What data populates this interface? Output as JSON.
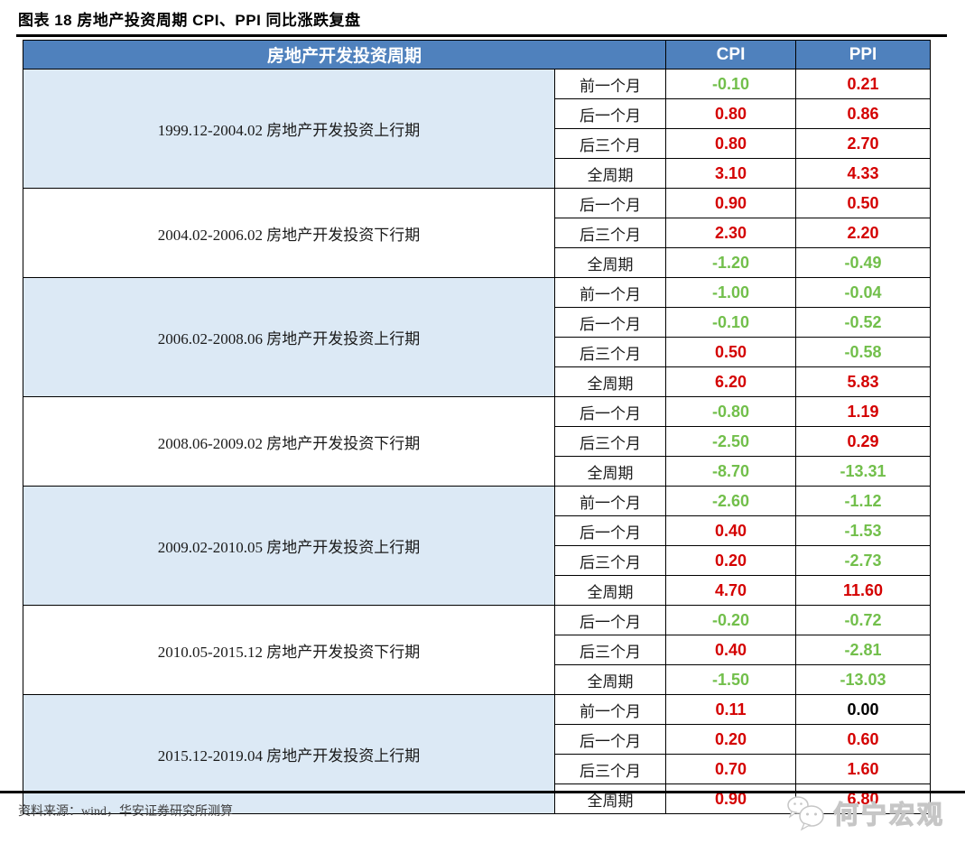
{
  "title": "图表 18 房地产投资周期 CPI、PPI 同比涨跌复盘",
  "colors": {
    "header_bg": "#4F81BD",
    "band_bg": "#DCE9F5",
    "positive_red": "#D40000",
    "negative_green": "#72BF4B",
    "zero_black": "#000000"
  },
  "table": {
    "header": {
      "period": "房地产开发投资周期",
      "cpi": "CPI",
      "ppi": "PPI"
    },
    "groups": [
      {
        "period": "1999.12-2004.02 房地产开发投资上行期",
        "shaded": true,
        "rows": [
          {
            "label": "前一个月",
            "cpi": "-0.10",
            "ppi": "0.21"
          },
          {
            "label": "后一个月",
            "cpi": "0.80",
            "ppi": "0.86"
          },
          {
            "label": "后三个月",
            "cpi": "0.80",
            "ppi": "2.70"
          },
          {
            "label": "全周期",
            "cpi": "3.10",
            "ppi": "4.33"
          }
        ]
      },
      {
        "period": "2004.02-2006.02 房地产开发投资下行期",
        "shaded": false,
        "rows": [
          {
            "label": "后一个月",
            "cpi": "0.90",
            "ppi": "0.50"
          },
          {
            "label": "后三个月",
            "cpi": "2.30",
            "ppi": "2.20"
          },
          {
            "label": "全周期",
            "cpi": "-1.20",
            "ppi": "-0.49"
          }
        ]
      },
      {
        "period": "2006.02-2008.06 房地产开发投资上行期",
        "shaded": true,
        "rows": [
          {
            "label": "前一个月",
            "cpi": "-1.00",
            "ppi": "-0.04"
          },
          {
            "label": "后一个月",
            "cpi": "-0.10",
            "ppi": "-0.52"
          },
          {
            "label": "后三个月",
            "cpi": "0.50",
            "ppi": "-0.58"
          },
          {
            "label": "全周期",
            "cpi": "6.20",
            "ppi": "5.83"
          }
        ]
      },
      {
        "period": "2008.06-2009.02 房地产开发投资下行期",
        "shaded": false,
        "rows": [
          {
            "label": "后一个月",
            "cpi": "-0.80",
            "ppi": "1.19"
          },
          {
            "label": "后三个月",
            "cpi": "-2.50",
            "ppi": "0.29"
          },
          {
            "label": "全周期",
            "cpi": "-8.70",
            "ppi": "-13.31"
          }
        ]
      },
      {
        "period": "2009.02-2010.05 房地产开发投资上行期",
        "shaded": true,
        "rows": [
          {
            "label": "前一个月",
            "cpi": "-2.60",
            "ppi": "-1.12"
          },
          {
            "label": "后一个月",
            "cpi": "0.40",
            "ppi": "-1.53"
          },
          {
            "label": "后三个月",
            "cpi": "0.20",
            "ppi": "-2.73"
          },
          {
            "label": "全周期",
            "cpi": "4.70",
            "ppi": "11.60"
          }
        ]
      },
      {
        "period": "2010.05-2015.12 房地产开发投资下行期",
        "shaded": false,
        "rows": [
          {
            "label": "后一个月",
            "cpi": "-0.20",
            "ppi": "-0.72"
          },
          {
            "label": "后三个月",
            "cpi": "0.40",
            "ppi": "-2.81"
          },
          {
            "label": "全周期",
            "cpi": "-1.50",
            "ppi": "-13.03"
          }
        ]
      },
      {
        "period": "2015.12-2019.04 房地产开发投资上行期",
        "shaded": true,
        "rows": [
          {
            "label": "前一个月",
            "cpi": "0.11",
            "ppi": "0.00"
          },
          {
            "label": "后一个月",
            "cpi": "0.20",
            "ppi": "0.60"
          },
          {
            "label": "后三个月",
            "cpi": "0.70",
            "ppi": "1.60"
          },
          {
            "label": "全周期",
            "cpi": "0.90",
            "ppi": "6.80"
          }
        ]
      }
    ]
  },
  "footer": {
    "source": "资料来源：wind，华安证券研究所测算",
    "logo_text": "何宁宏观"
  }
}
